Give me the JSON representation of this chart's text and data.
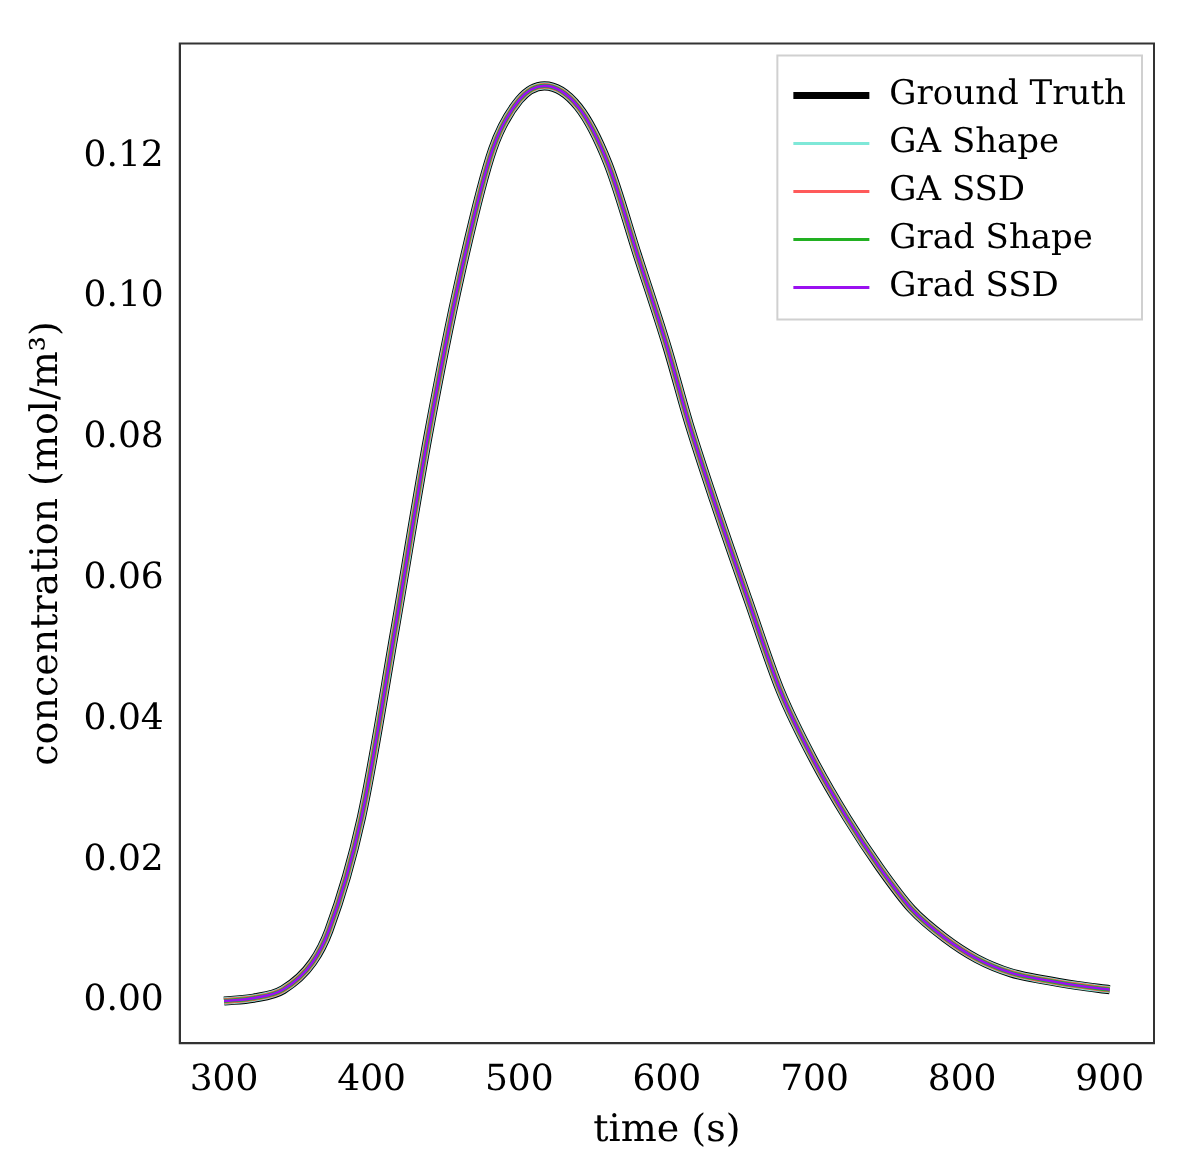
{
  "chart_data": {
    "type": "line",
    "xlabel": "time (s)",
    "ylabel": "concentration (mol/m³)",
    "xlim": [
      270,
      930
    ],
    "ylim": [
      -0.006,
      0.136
    ],
    "xticks": [
      300,
      400,
      500,
      600,
      700,
      800,
      900
    ],
    "yticks": [
      {
        "value": 0,
        "label": "0.00"
      },
      {
        "value": 0.02,
        "label": "0.02"
      },
      {
        "value": 0.04,
        "label": "0.04"
      },
      {
        "value": 0.06,
        "label": "0.06"
      },
      {
        "value": 0.08,
        "label": "0.08"
      },
      {
        "value": 0.1,
        "label": "0.10"
      },
      {
        "value": 0.12,
        "label": "0.12"
      }
    ],
    "legend": "top right",
    "marker": "none",
    "grid": false,
    "x": [
      300,
      320,
      340,
      360,
      371,
      393,
      416,
      438,
      460,
      482,
      500,
      517,
      540,
      560,
      580,
      600,
      615,
      632,
      655,
      677,
      700,
      722,
      744,
      766,
      788,
      810,
      833,
      855,
      878,
      900
    ],
    "series": [
      {
        "name": "Ground Truth",
        "color": "#000000",
        "values": [
          0,
          0.0004,
          0.0016,
          0.0055,
          0.01,
          0.026,
          0.053,
          0.08,
          0.103,
          0.121,
          0.128,
          0.13,
          0.127,
          0.119,
          0.106,
          0.093,
          0.082,
          0.071,
          0.057,
          0.044,
          0.034,
          0.026,
          0.019,
          0.013,
          0.009,
          0.006,
          0.004,
          0.003,
          0.0022,
          0.0016
        ]
      },
      {
        "name": "GA Shape",
        "color": "#7fe8d8",
        "values": [
          0,
          0.0004,
          0.0016,
          0.0055,
          0.01,
          0.026,
          0.053,
          0.08,
          0.103,
          0.121,
          0.128,
          0.13,
          0.127,
          0.119,
          0.106,
          0.093,
          0.082,
          0.071,
          0.057,
          0.044,
          0.034,
          0.026,
          0.019,
          0.013,
          0.009,
          0.006,
          0.004,
          0.003,
          0.0022,
          0.0016
        ]
      },
      {
        "name": "GA SSD",
        "color": "#ff5a5a",
        "values": [
          0,
          0.0004,
          0.0016,
          0.0055,
          0.01,
          0.026,
          0.053,
          0.08,
          0.103,
          0.121,
          0.128,
          0.13,
          0.127,
          0.119,
          0.106,
          0.093,
          0.082,
          0.071,
          0.057,
          0.044,
          0.034,
          0.026,
          0.019,
          0.013,
          0.009,
          0.006,
          0.004,
          0.003,
          0.0022,
          0.0016
        ]
      },
      {
        "name": "Grad Shape",
        "color": "#22b022",
        "values": [
          0,
          0.0004,
          0.0016,
          0.0055,
          0.01,
          0.026,
          0.053,
          0.08,
          0.103,
          0.121,
          0.128,
          0.13,
          0.127,
          0.119,
          0.106,
          0.093,
          0.082,
          0.071,
          0.057,
          0.044,
          0.034,
          0.026,
          0.019,
          0.013,
          0.009,
          0.006,
          0.004,
          0.003,
          0.0022,
          0.0016
        ]
      },
      {
        "name": "Grad SSD",
        "color": "#9a10f0",
        "values": [
          0,
          0.0004,
          0.0016,
          0.0055,
          0.01,
          0.026,
          0.053,
          0.08,
          0.103,
          0.121,
          0.128,
          0.13,
          0.127,
          0.119,
          0.106,
          0.093,
          0.082,
          0.071,
          0.057,
          0.044,
          0.034,
          0.026,
          0.019,
          0.013,
          0.009,
          0.006,
          0.004,
          0.003,
          0.0022,
          0.0016
        ]
      }
    ]
  }
}
